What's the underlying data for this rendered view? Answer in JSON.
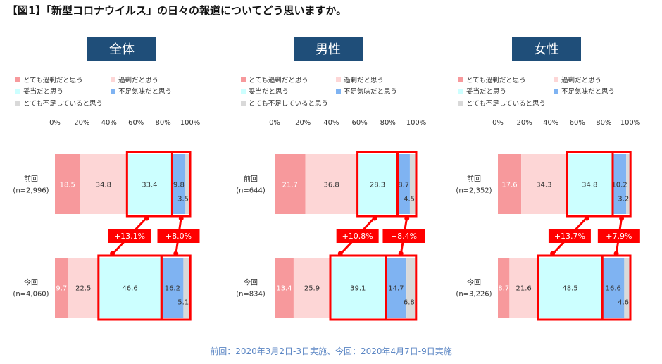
{
  "title": "【図1】「新型コロナウイルス」の日々の報道についてどう思いますか。",
  "footer": "前回：2020年3月2日-3日実施、今回：2020年4月7日-9日実施",
  "colors": {
    "seg": [
      "#f7999c",
      "#fdd6d6",
      "#ccffff",
      "#7fb3f2",
      "#d9d9d9"
    ],
    "panel_header": "#1f4e79",
    "highlight": "#ff0000"
  },
  "chart_data": [
    {
      "type": "bar",
      "orientation": "horizontal-stacked",
      "title": "全体",
      "legend": [
        "とても過剰だと思う",
        "過剰だと思う",
        "妥当だと思う",
        "不足気味だと思う",
        "とても不足していると思う"
      ],
      "xlim": [
        0,
        100
      ],
      "xticks": [
        "0%",
        "20%",
        "40%",
        "60%",
        "80%",
        "100%"
      ],
      "rows": [
        {
          "label": "前回",
          "n": "(n=2,996)",
          "values": [
            18.5,
            34.8,
            33.4,
            9.8,
            3.5
          ],
          "labels": [
            "18.5",
            "34.8",
            "33.4",
            "9.8",
            "3.5"
          ]
        },
        {
          "label": "今回",
          "n": "(n=4,060)",
          "values": [
            9.7,
            22.5,
            46.6,
            16.2,
            5.1
          ],
          "labels": [
            "9.7",
            "22.5",
            "46.6",
            "16.2",
            "5.1"
          ]
        }
      ],
      "changes": [
        "+13.1%",
        "+8.0%"
      ]
    },
    {
      "type": "bar",
      "orientation": "horizontal-stacked",
      "title": "男性",
      "legend": [
        "とても過剰だと思う",
        "過剰だと思う",
        "妥当だと思う",
        "不足気味だと思う",
        "とても不足していると思う"
      ],
      "xlim": [
        0,
        100
      ],
      "xticks": [
        "0%",
        "20%",
        "40%",
        "60%",
        "80%",
        "100%"
      ],
      "rows": [
        {
          "label": "前回",
          "n": "(n=644)",
          "values": [
            21.7,
            36.8,
            28.3,
            8.7,
            4.5
          ],
          "labels": [
            "21.7",
            "36.8",
            "28.3",
            "8.7",
            "4.5"
          ]
        },
        {
          "label": "今回",
          "n": "(n=834)",
          "values": [
            13.4,
            25.9,
            39.1,
            14.7,
            6.8
          ],
          "labels": [
            "13.4",
            "25.9",
            "39.1",
            "14.7",
            "6.8"
          ]
        }
      ],
      "changes": [
        "+10.8%",
        "+8.4%"
      ]
    },
    {
      "type": "bar",
      "orientation": "horizontal-stacked",
      "title": "女性",
      "legend": [
        "とても過剰だと思う",
        "過剰だと思う",
        "妥当だと思う",
        "不足気味だと思う",
        "とても不足していると思う"
      ],
      "xlim": [
        0,
        100
      ],
      "xticks": [
        "0%",
        "20%",
        "40%",
        "60%",
        "80%",
        "100%"
      ],
      "rows": [
        {
          "label": "前回",
          "n": "(n=2,352)",
          "values": [
            17.6,
            34.3,
            34.8,
            10.2,
            3.2
          ],
          "labels": [
            "17.6",
            "34.3",
            "34.8",
            "10.2",
            "3.2"
          ]
        },
        {
          "label": "今回",
          "n": "(n=3,226)",
          "values": [
            8.7,
            21.6,
            48.5,
            16.6,
            4.6
          ],
          "labels": [
            "8.7",
            "21.6",
            "48.5",
            "16.6",
            "4.6"
          ]
        }
      ],
      "changes": [
        "+13.7%",
        "+7.9%"
      ]
    }
  ]
}
